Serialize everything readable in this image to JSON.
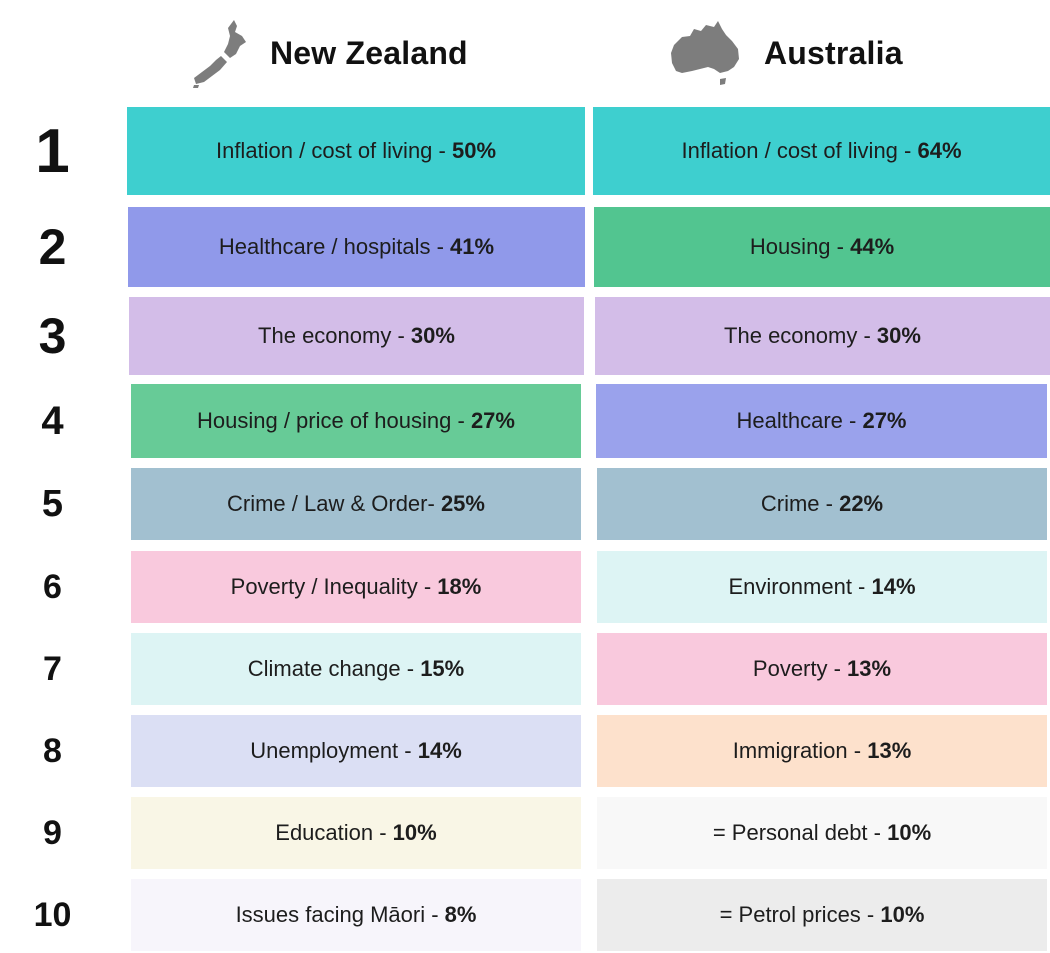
{
  "headers": {
    "nz": {
      "title": "New Zealand",
      "icon": "new-zealand-map-icon"
    },
    "au": {
      "title": "Australia",
      "icon": "australia-map-icon"
    }
  },
  "chart_data": {
    "type": "table",
    "columns": [
      "New Zealand",
      "Australia"
    ],
    "rows": [
      {
        "rank": "1",
        "nz_label": "Inflation / cost of living - ",
        "nz_value": "50%",
        "nz_color": "#3ecfcf",
        "au_label": "Inflation / cost of living - ",
        "au_value": "64%",
        "au_color": "#3ecfcf"
      },
      {
        "rank": "2",
        "nz_label": "Healthcare / hospitals - ",
        "nz_value": "41%",
        "nz_color": "#9099ea",
        "au_label": "Housing - ",
        "au_value": "44%",
        "au_color": "#52c590"
      },
      {
        "rank": "3",
        "nz_label": "The economy - ",
        "nz_value": "30%",
        "nz_color": "#d3bde8",
        "au_label": "The economy - ",
        "au_value": "30%",
        "au_color": "#d3bde8"
      },
      {
        "rank": "4",
        "nz_label": "Housing / price of housing - ",
        "nz_value": "27%",
        "nz_color": "#67cb97",
        "au_label": "Healthcare - ",
        "au_value": "27%",
        "au_color": "#9aa2ec"
      },
      {
        "rank": "5",
        "nz_label": "Crime / Law & Order- ",
        "nz_value": "25%",
        "nz_color": "#a2c0d0",
        "au_label": "Crime - ",
        "au_value": "22%",
        "au_color": "#a2c0d0"
      },
      {
        "rank": "6",
        "nz_label": "Poverty / Inequality - ",
        "nz_value": "18%",
        "nz_color": "#f9c9dd",
        "au_label": "Environment - ",
        "au_value": "14%",
        "au_color": "#ddf4f4"
      },
      {
        "rank": "7",
        "nz_label": "Climate change - ",
        "nz_value": "15%",
        "nz_color": "#ddf4f4",
        "au_label": "Poverty - ",
        "au_value": "13%",
        "au_color": "#f9c9dd"
      },
      {
        "rank": "8",
        "nz_label": "Unemployment - ",
        "nz_value": "14%",
        "nz_color": "#dbdff4",
        "au_label": "Immigration - ",
        "au_value": "13%",
        "au_color": "#fde1cc"
      },
      {
        "rank": "9",
        "nz_label": "Education - ",
        "nz_value": "10%",
        "nz_color": "#f9f6e6",
        "au_label": "= Personal debt - ",
        "au_value": "10%",
        "au_color": "#f8f8f8"
      },
      {
        "rank": "10",
        "nz_label": "Issues facing Māori - ",
        "nz_value": "8%",
        "nz_color": "#f7f5fb",
        "au_label": "= Petrol prices - ",
        "au_value": "10%",
        "au_color": "#ececec"
      }
    ]
  }
}
